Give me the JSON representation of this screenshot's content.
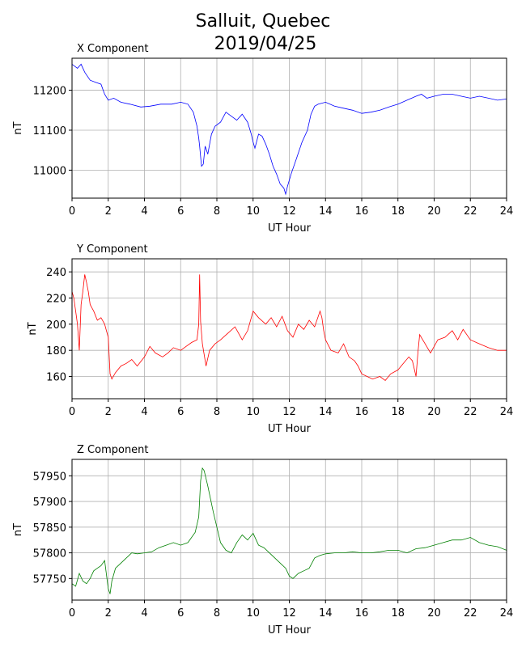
{
  "figure": {
    "title_line1": "Salluit, Quebec",
    "title_line2": "2019/04/25"
  },
  "colors": {
    "x": "#0000ff",
    "y": "#ff0000",
    "z": "#008000",
    "grid": "#b0b0b0"
  },
  "chart_data": [
    {
      "type": "line",
      "title": "X Component",
      "xlabel": "UT Hour",
      "ylabel": "nT",
      "xlim": [
        0,
        24
      ],
      "ylim": [
        10930,
        11280
      ],
      "xticks": [
        0,
        2,
        4,
        6,
        8,
        10,
        12,
        14,
        16,
        18,
        20,
        22,
        24
      ],
      "yticks": [
        11000,
        11100,
        11200
      ],
      "grid": true,
      "color": "#0000ff",
      "x": [
        0,
        0.3,
        0.5,
        0.7,
        1.0,
        1.3,
        1.6,
        1.8,
        2.0,
        2.3,
        2.7,
        3.2,
        3.8,
        4.3,
        4.9,
        5.5,
        6.0,
        6.4,
        6.7,
        6.9,
        7.0,
        7.05,
        7.15,
        7.25,
        7.35,
        7.5,
        7.7,
        7.9,
        8.2,
        8.5,
        8.8,
        9.1,
        9.4,
        9.7,
        9.9,
        10.0,
        10.1,
        10.3,
        10.5,
        10.7,
        10.9,
        11.1,
        11.3,
        11.5,
        11.7,
        11.8,
        11.9,
        12.1,
        12.4,
        12.7,
        13.0,
        13.2,
        13.4,
        13.6,
        14.0,
        14.5,
        15.0,
        15.5,
        16.0,
        16.5,
        17.0,
        17.5,
        18.0,
        18.5,
        19.0,
        19.3,
        19.6,
        20.0,
        20.5,
        21.0,
        21.5,
        22.0,
        22.5,
        23.0,
        23.5,
        24.0
      ],
      "y": [
        11265,
        11255,
        11265,
        11245,
        11225,
        11220,
        11215,
        11190,
        11175,
        11180,
        11170,
        11165,
        11158,
        11160,
        11165,
        11165,
        11170,
        11165,
        11145,
        11110,
        11080,
        11060,
        11010,
        11015,
        11060,
        11040,
        11090,
        11110,
        11120,
        11145,
        11135,
        11125,
        11140,
        11120,
        11090,
        11070,
        11055,
        11090,
        11085,
        11065,
        11040,
        11010,
        10990,
        10965,
        10955,
        10940,
        10960,
        10990,
        11030,
        11070,
        11100,
        11140,
        11160,
        11165,
        11170,
        11160,
        11155,
        11150,
        11142,
        11145,
        11150,
        11158,
        11165,
        11175,
        11185,
        11190,
        11180,
        11185,
        11190,
        11190,
        11185,
        11180,
        11185,
        11180,
        11175,
        11178
      ]
    },
    {
      "type": "line",
      "title": "Y Component",
      "xlabel": "UT Hour",
      "ylabel": "nT",
      "xlim": [
        0,
        24
      ],
      "ylim": [
        143,
        250
      ],
      "xticks": [
        0,
        2,
        4,
        6,
        8,
        10,
        12,
        14,
        16,
        18,
        20,
        22,
        24
      ],
      "yticks": [
        160,
        180,
        200,
        220,
        240
      ],
      "grid": true,
      "color": "#ff0000",
      "x": [
        0,
        0.1,
        0.2,
        0.3,
        0.4,
        0.5,
        0.6,
        0.7,
        0.8,
        0.9,
        1.0,
        1.2,
        1.4,
        1.6,
        1.8,
        1.9,
        2.0,
        2.1,
        2.2,
        2.4,
        2.7,
        3.0,
        3.3,
        3.6,
        4.0,
        4.3,
        4.6,
        5.0,
        5.3,
        5.6,
        6.0,
        6.3,
        6.6,
        6.9,
        7.0,
        7.05,
        7.1,
        7.2,
        7.4,
        7.6,
        7.9,
        8.2,
        8.6,
        9.0,
        9.4,
        9.7,
        10.0,
        10.3,
        10.7,
        11.0,
        11.3,
        11.6,
        11.9,
        12.2,
        12.5,
        12.8,
        13.1,
        13.4,
        13.7,
        13.8,
        13.9,
        14.0,
        14.3,
        14.7,
        15.0,
        15.3,
        15.6,
        15.8,
        16.0,
        16.3,
        16.6,
        17.0,
        17.3,
        17.6,
        18.0,
        18.3,
        18.6,
        18.8,
        19.0,
        19.1,
        19.2,
        19.5,
        19.8,
        20.2,
        20.6,
        21.0,
        21.3,
        21.6,
        22.0,
        22.5,
        23.0,
        23.5,
        24.0
      ],
      "y": [
        225,
        220,
        210,
        200,
        180,
        215,
        225,
        238,
        232,
        225,
        215,
        210,
        203,
        205,
        200,
        195,
        190,
        162,
        158,
        163,
        168,
        170,
        173,
        168,
        175,
        183,
        178,
        175,
        178,
        182,
        180,
        183,
        186,
        188,
        200,
        238,
        202,
        185,
        168,
        180,
        185,
        188,
        193,
        198,
        188,
        195,
        210,
        205,
        200,
        205,
        198,
        206,
        195,
        190,
        200,
        196,
        203,
        198,
        210,
        205,
        195,
        188,
        180,
        178,
        185,
        175,
        172,
        168,
        162,
        160,
        158,
        160,
        157,
        162,
        165,
        170,
        175,
        172,
        160,
        178,
        192,
        185,
        178,
        188,
        190,
        195,
        188,
        196,
        188,
        185,
        182,
        180,
        180
      ]
    },
    {
      "type": "line",
      "title": "Z Component",
      "xlabel": "UT Hour",
      "ylabel": "nT",
      "xlim": [
        0,
        24
      ],
      "ylim": [
        57708,
        57982
      ],
      "xticks": [
        0,
        2,
        4,
        6,
        8,
        10,
        12,
        14,
        16,
        18,
        20,
        22,
        24
      ],
      "yticks": [
        57750,
        57800,
        57850,
        57900,
        57950
      ],
      "grid": true,
      "color": "#008000",
      "x": [
        0,
        0.2,
        0.4,
        0.6,
        0.8,
        1.0,
        1.2,
        1.4,
        1.6,
        1.8,
        2.0,
        2.1,
        2.2,
        2.4,
        2.7,
        3.0,
        3.3,
        3.6,
        4.0,
        4.4,
        4.8,
        5.2,
        5.6,
        6.0,
        6.4,
        6.8,
        7.0,
        7.1,
        7.2,
        7.3,
        7.5,
        7.8,
        8.0,
        8.2,
        8.5,
        8.8,
        9.1,
        9.4,
        9.7,
        10.0,
        10.3,
        10.6,
        10.9,
        11.2,
        11.5,
        11.8,
        12.0,
        12.2,
        12.5,
        12.8,
        13.1,
        13.4,
        13.7,
        14.0,
        14.5,
        15.0,
        15.5,
        16.0,
        16.5,
        17.0,
        17.5,
        18.0,
        18.5,
        19.0,
        19.5,
        20.0,
        20.5,
        21.0,
        21.5,
        22.0,
        22.5,
        23.0,
        23.5,
        24.0
      ],
      "y": [
        57740,
        57735,
        57760,
        57745,
        57740,
        57750,
        57765,
        57770,
        57775,
        57785,
        57730,
        57720,
        57745,
        57770,
        57780,
        57790,
        57800,
        57798,
        57800,
        57802,
        57810,
        57815,
        57820,
        57815,
        57820,
        57840,
        57870,
        57940,
        57965,
        57960,
        57930,
        57880,
        57850,
        57820,
        57805,
        57800,
        57820,
        57835,
        57825,
        57838,
        57815,
        57810,
        57800,
        57790,
        57780,
        57770,
        57755,
        57750,
        57760,
        57765,
        57770,
        57790,
        57795,
        57798,
        57800,
        57800,
        57802,
        57800,
        57800,
        57802,
        57805,
        57805,
        57800,
        57808,
        57810,
        57815,
        57820,
        57825,
        57825,
        57830,
        57820,
        57815,
        57812,
        57805
      ]
    }
  ]
}
